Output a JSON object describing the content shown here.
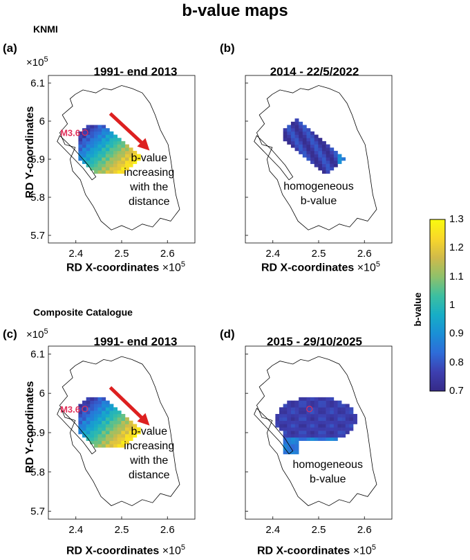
{
  "figure": {
    "title": "b-value maps",
    "section_top": "KNMI",
    "section_bottom": "Composite Catalogue"
  },
  "colors": {
    "colormap": [
      "#352a87",
      "#3d3fb0",
      "#2e6cd8",
      "#1a8fd6",
      "#17aec6",
      "#3dbfa0",
      "#8fc16a",
      "#d0ba4a",
      "#f9d72a",
      "#f9fb0e"
    ],
    "arrow": "#dd2020",
    "event": "#e0305a",
    "outline": "#000000"
  },
  "colorbar": {
    "label": "b-value",
    "min": 0.7,
    "max": 1.3,
    "ticks": [
      "1.3",
      "1.2",
      "1.1",
      "1",
      "0.9",
      "0.8",
      "0.7"
    ]
  },
  "axes": {
    "xlabel": "RD X-coordinates",
    "ylabel": "RD Y-coordinates",
    "exponent_base": "×10",
    "exponent": "5",
    "xticks": [
      "2.4",
      "2.5",
      "2.6"
    ],
    "yticks": [
      "6.1",
      "6",
      "5.9",
      "5.8",
      "5.7"
    ],
    "xlim": [
      2.34,
      2.66
    ],
    "ylim": [
      5.68,
      6.12
    ]
  },
  "chart_data": [
    {
      "type": "heatmap",
      "panel": "(a)",
      "title": "1991- end 2013",
      "xlim": [
        2.34,
        2.66
      ],
      "ylim": [
        5.68,
        6.12
      ],
      "event_label": "M3.6",
      "event": {
        "x": 2.42,
        "y": 5.97
      },
      "annotation": [
        "b-value",
        "increasing",
        "with the",
        "distance"
      ],
      "trend": "low b-value (~0.75) in north-west, increasing to ~1.2 toward south-east"
    },
    {
      "type": "heatmap",
      "panel": "(b)",
      "title": "2014 - 22/5/2022",
      "xlim": [
        2.34,
        2.66
      ],
      "ylim": [
        5.68,
        6.12
      ],
      "annotation": [
        "homogeneous",
        "b-value"
      ],
      "trend": "homogeneous b-value ~0.75-0.8"
    },
    {
      "type": "heatmap",
      "panel": "(c)",
      "title": "1991- end 2013",
      "xlim": [
        2.34,
        2.66
      ],
      "ylim": [
        5.68,
        6.12
      ],
      "event_label": "M3.6",
      "event": {
        "x": 2.42,
        "y": 5.96
      },
      "annotation": [
        "b-value",
        "increasing",
        "with the",
        "distance"
      ],
      "trend": "low b-value in north-west, increasing toward south-east"
    },
    {
      "type": "heatmap",
      "panel": "(d)",
      "title": "2015 - 29/10/2025",
      "xlim": [
        2.34,
        2.66
      ],
      "ylim": [
        5.68,
        6.12
      ],
      "event": {
        "x": 2.48,
        "y": 5.96
      },
      "annotation": [
        "homogeneous",
        "b-value"
      ],
      "trend": "homogeneous b-value ~0.75-0.8, slightly higher at margins"
    }
  ]
}
